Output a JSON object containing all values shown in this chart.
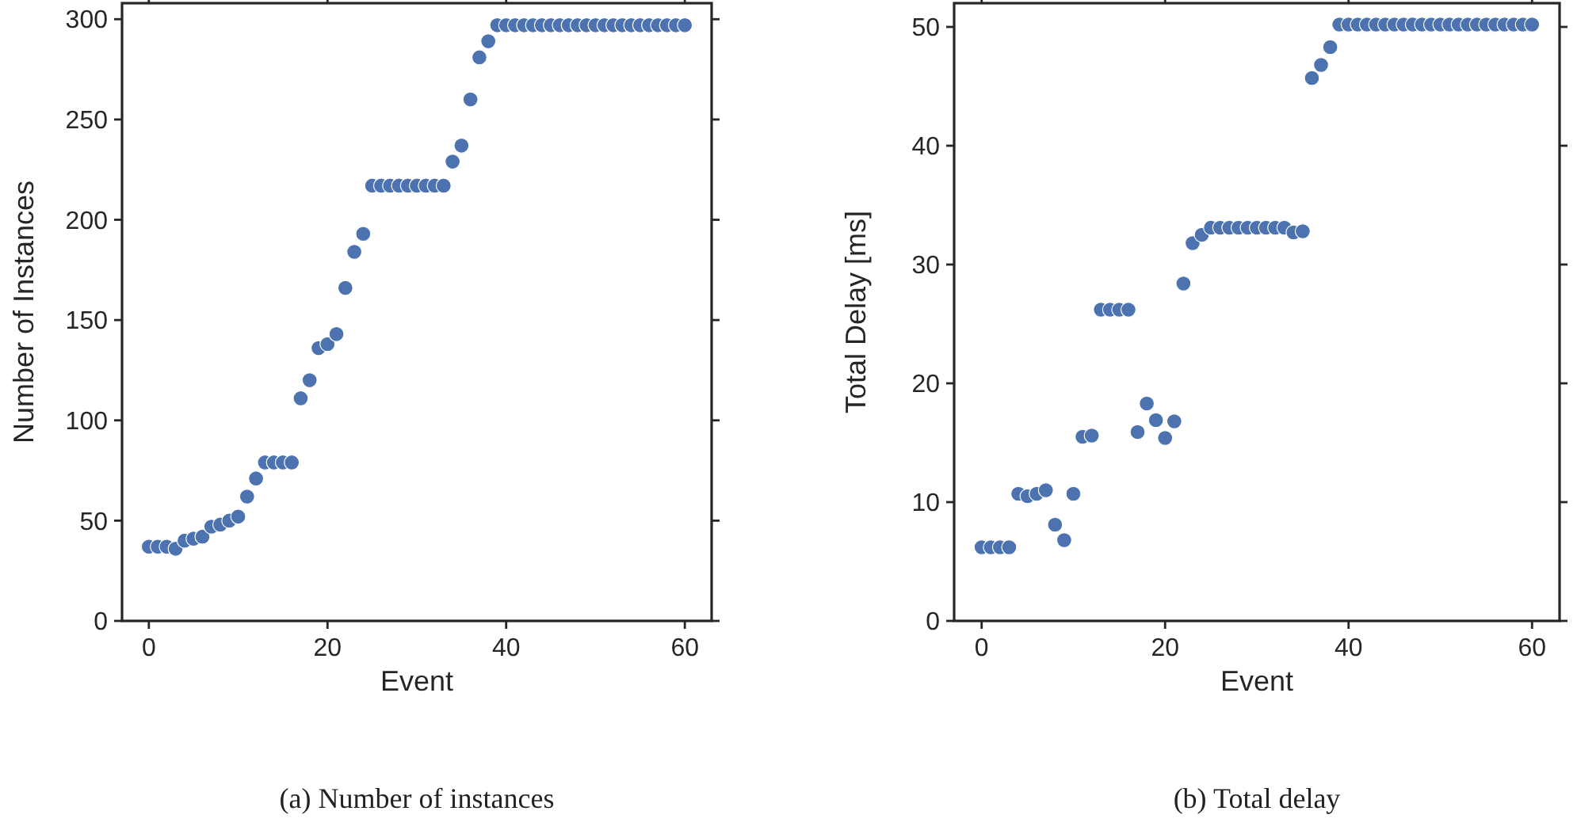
{
  "chart_data": [
    {
      "type": "scatter",
      "title": "(a) Number of instances",
      "xlabel": "Event",
      "ylabel": "Number of Instances",
      "xlim": [
        -3,
        63
      ],
      "xticks": [
        0,
        20,
        40,
        60
      ],
      "ylim": [
        0,
        308
      ],
      "yticks": [
        0,
        50,
        100,
        150,
        200,
        250,
        300
      ],
      "marker": "circle",
      "grid": false,
      "x": [
        0,
        1,
        2,
        3,
        4,
        5,
        6,
        7,
        8,
        9,
        10,
        11,
        12,
        13,
        14,
        15,
        16,
        17,
        18,
        19,
        20,
        21,
        22,
        23,
        24,
        25,
        26,
        27,
        28,
        29,
        30,
        31,
        32,
        33,
        34,
        35,
        36,
        37,
        38,
        39,
        40,
        41,
        42,
        43,
        44,
        45,
        46,
        47,
        48,
        49,
        50,
        51,
        52,
        53,
        54,
        55,
        56,
        57,
        58,
        59,
        60
      ],
      "series": [
        {
          "color": "#4c72b0",
          "values": [
            37,
            37,
            37,
            36,
            40,
            41,
            42,
            47,
            48,
            50,
            52,
            62,
            71,
            79,
            79,
            79,
            79,
            111,
            120,
            136,
            138,
            143,
            166,
            184,
            193,
            217,
            217,
            217,
            217,
            217,
            217,
            217,
            217,
            217,
            229,
            237,
            260,
            281,
            289,
            297,
            297,
            297,
            297,
            297,
            297,
            297,
            297,
            297,
            297,
            297,
            297,
            297,
            297,
            297,
            297,
            297,
            297,
            297,
            297,
            297,
            297
          ]
        }
      ]
    },
    {
      "type": "scatter",
      "title": "(b) Total delay",
      "xlabel": "Event",
      "ylabel": "Total Delay [ms]",
      "xlim": [
        -3,
        63
      ],
      "xticks": [
        0,
        20,
        40,
        60
      ],
      "ylim": [
        0,
        52
      ],
      "yticks": [
        0,
        10,
        20,
        30,
        40,
        50
      ],
      "marker": "circle",
      "grid": false,
      "x": [
        0,
        1,
        2,
        3,
        4,
        5,
        6,
        7,
        8,
        9,
        10,
        11,
        12,
        13,
        14,
        15,
        16,
        17,
        18,
        19,
        20,
        21,
        22,
        23,
        24,
        25,
        26,
        27,
        28,
        29,
        30,
        31,
        32,
        33,
        34,
        35,
        36,
        37,
        38,
        39,
        40,
        41,
        42,
        43,
        44,
        45,
        46,
        47,
        48,
        49,
        50,
        51,
        52,
        53,
        54,
        55,
        56,
        57,
        58,
        59,
        60
      ],
      "series": [
        {
          "color": "#4c72b0",
          "values": [
            6.2,
            6.2,
            6.2,
            6.2,
            10.7,
            10.5,
            10.7,
            11.0,
            8.1,
            6.8,
            10.7,
            15.5,
            15.6,
            26.2,
            26.2,
            26.2,
            26.2,
            15.9,
            18.3,
            16.9,
            15.4,
            16.8,
            28.4,
            31.8,
            32.5,
            33.1,
            33.1,
            33.1,
            33.1,
            33.1,
            33.1,
            33.1,
            33.1,
            33.1,
            32.7,
            32.8,
            45.7,
            46.8,
            48.3,
            50.2,
            50.2,
            50.2,
            50.2,
            50.2,
            50.2,
            50.2,
            50.2,
            50.2,
            50.2,
            50.2,
            50.2,
            50.2,
            50.2,
            50.2,
            50.2,
            50.2,
            50.2,
            50.2,
            50.2,
            50.2,
            50.2
          ]
        }
      ]
    }
  ]
}
